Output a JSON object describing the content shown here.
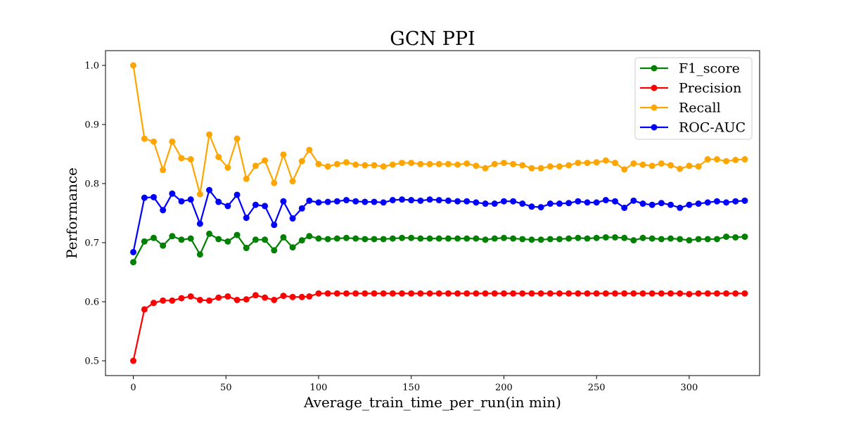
{
  "chart_data": {
    "type": "line",
    "title": "GCN PPI",
    "xlabel": "Average_train_time_per_run(in min)",
    "ylabel": "Performance",
    "xlim": [
      -15,
      338
    ],
    "ylim": [
      0.475,
      1.025
    ],
    "xticks": [
      0,
      50,
      100,
      150,
      200,
      250,
      300
    ],
    "yticks": [
      0.5,
      0.6,
      0.7,
      0.8,
      0.9,
      1.0
    ],
    "ytick_labels": [
      "0.5",
      "0.6",
      "0.7",
      "0.8",
      "0.9",
      "1.0"
    ],
    "legend_position": "top-right",
    "grid": false,
    "x": [
      0,
      6,
      11,
      16,
      21,
      26,
      31,
      36,
      41,
      46,
      51,
      56,
      61,
      66,
      71,
      76,
      81,
      86,
      91,
      95,
      100,
      105,
      110,
      115,
      120,
      125,
      130,
      135,
      140,
      145,
      150,
      155,
      160,
      165,
      170,
      175,
      180,
      185,
      190,
      195,
      200,
      205,
      210,
      215,
      220,
      225,
      230,
      235,
      240,
      245,
      250,
      255,
      260,
      265,
      270,
      275,
      280,
      285,
      290,
      295,
      300,
      305,
      310,
      315,
      320,
      325,
      330
    ],
    "series": [
      {
        "name": "F1_score",
        "color": "#008000",
        "values": [
          0.667,
          0.702,
          0.708,
          0.695,
          0.711,
          0.705,
          0.707,
          0.68,
          0.715,
          0.706,
          0.702,
          0.713,
          0.691,
          0.705,
          0.705,
          0.687,
          0.709,
          0.692,
          0.704,
          0.711,
          0.707,
          0.706,
          0.707,
          0.708,
          0.707,
          0.706,
          0.706,
          0.706,
          0.707,
          0.708,
          0.708,
          0.707,
          0.707,
          0.707,
          0.707,
          0.707,
          0.707,
          0.707,
          0.705,
          0.707,
          0.708,
          0.707,
          0.706,
          0.705,
          0.705,
          0.706,
          0.706,
          0.707,
          0.708,
          0.707,
          0.708,
          0.709,
          0.709,
          0.708,
          0.704,
          0.708,
          0.707,
          0.706,
          0.707,
          0.706,
          0.704,
          0.706,
          0.706,
          0.706,
          0.71,
          0.709,
          0.71
        ]
      },
      {
        "name": "Precision",
        "color": "#ff0000",
        "values": [
          0.5,
          0.587,
          0.598,
          0.602,
          0.602,
          0.606,
          0.609,
          0.603,
          0.602,
          0.607,
          0.609,
          0.603,
          0.604,
          0.611,
          0.607,
          0.603,
          0.61,
          0.608,
          0.608,
          0.609,
          0.614,
          0.614,
          0.614,
          0.614,
          0.614,
          0.614,
          0.614,
          0.614,
          0.614,
          0.614,
          0.614,
          0.614,
          0.614,
          0.614,
          0.614,
          0.614,
          0.614,
          0.614,
          0.614,
          0.614,
          0.614,
          0.614,
          0.614,
          0.614,
          0.614,
          0.614,
          0.614,
          0.614,
          0.614,
          0.614,
          0.614,
          0.614,
          0.614,
          0.614,
          0.614,
          0.614,
          0.614,
          0.614,
          0.614,
          0.614,
          0.613,
          0.614,
          0.614,
          0.614,
          0.614,
          0.614,
          0.614
        ]
      },
      {
        "name": "Recall",
        "color": "#ffa500",
        "values": [
          1.0,
          0.876,
          0.871,
          0.823,
          0.871,
          0.843,
          0.841,
          0.782,
          0.883,
          0.845,
          0.827,
          0.876,
          0.808,
          0.83,
          0.839,
          0.801,
          0.849,
          0.804,
          0.838,
          0.857,
          0.833,
          0.829,
          0.833,
          0.836,
          0.832,
          0.831,
          0.831,
          0.829,
          0.832,
          0.835,
          0.835,
          0.833,
          0.833,
          0.833,
          0.833,
          0.832,
          0.834,
          0.83,
          0.826,
          0.833,
          0.835,
          0.833,
          0.831,
          0.826,
          0.826,
          0.829,
          0.829,
          0.831,
          0.835,
          0.835,
          0.836,
          0.839,
          0.835,
          0.824,
          0.834,
          0.832,
          0.83,
          0.834,
          0.831,
          0.825,
          0.83,
          0.829,
          0.841,
          0.841,
          0.838,
          0.84,
          0.841
        ]
      },
      {
        "name": "ROC-AUC",
        "color": "#0000ff",
        "values": [
          0.684,
          0.776,
          0.777,
          0.755,
          0.783,
          0.77,
          0.773,
          0.732,
          0.789,
          0.769,
          0.762,
          0.781,
          0.742,
          0.764,
          0.762,
          0.73,
          0.77,
          0.741,
          0.758,
          0.771,
          0.768,
          0.769,
          0.77,
          0.772,
          0.77,
          0.769,
          0.769,
          0.768,
          0.772,
          0.773,
          0.772,
          0.771,
          0.773,
          0.772,
          0.771,
          0.77,
          0.77,
          0.768,
          0.766,
          0.766,
          0.77,
          0.77,
          0.766,
          0.761,
          0.76,
          0.766,
          0.766,
          0.767,
          0.77,
          0.768,
          0.768,
          0.772,
          0.77,
          0.759,
          0.771,
          0.766,
          0.764,
          0.767,
          0.764,
          0.759,
          0.764,
          0.766,
          0.768,
          0.77,
          0.768,
          0.77,
          0.771
        ]
      }
    ]
  }
}
